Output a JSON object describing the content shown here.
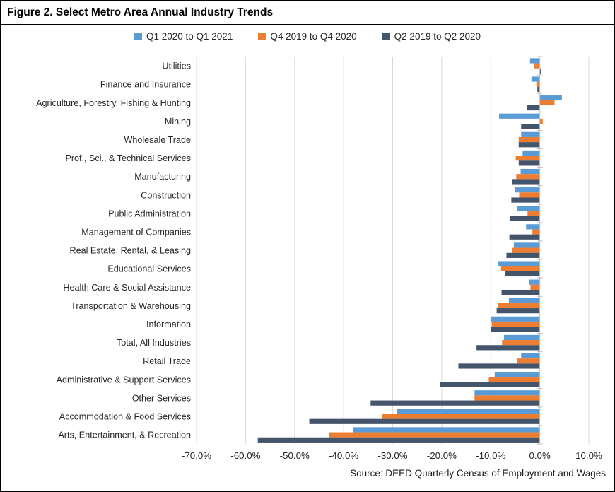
{
  "figure": {
    "source": "Source: DEED Quarterly Census of Employment and Wages"
  },
  "colors": {
    "blue": "#5B9BD5",
    "orange": "#ED7D31",
    "dark_slate": "#44546A",
    "gridline": "#D9D9D9",
    "axis_line": "#BFBFBF",
    "text": "#262626"
  },
  "chart_data": {
    "type": "bar",
    "orientation": "horizontal",
    "title": "Figure 2. Select Metro Area Annual Industry Trends",
    "xlabel": "",
    "ylabel": "",
    "grid": true,
    "legend_position": "top",
    "x_axis": {
      "min": -70,
      "max": 10,
      "tick_step": 10,
      "tick_labels": [
        "-70.0%",
        "-60.0%",
        "-50.0%",
        "-40.0%",
        "-30.0%",
        "-20.0%",
        "-10.0%",
        "0.0%",
        "10.0%"
      ]
    },
    "categories": [
      "Utilities",
      "Finance and Insurance",
      "Agriculture, Forestry, Fishing & Hunting",
      "Mining",
      "Wholesale Trade",
      "Prof., Sci., & Technical Services",
      "Manufacturing",
      "Construction",
      "Public Administration",
      "Management of Companies",
      "Real Estate, Rental, & Leasing",
      "Educational Services",
      "Health Care & Social Assistance",
      "Transportation & Warehousing",
      "Information",
      "Total, All Industries",
      "Retail Trade",
      "Administrative & Support Services",
      "Other Services",
      "Accommodation & Food Services",
      "Arts, Entertainment, & Recreation"
    ],
    "series": [
      {
        "name": "Q1 2020 to Q1 2021",
        "color": "#5B9BD5",
        "values": [
          -2.0,
          -1.7,
          4.5,
          -8.3,
          -3.8,
          -3.5,
          -3.9,
          -5.0,
          -4.7,
          -2.8,
          -5.3,
          -8.5,
          -2.2,
          -6.3,
          -9.9,
          -7.3,
          -3.8,
          -9.2,
          -13.3,
          -29.2,
          -38.0
        ]
      },
      {
        "name": "Q4 2019 to Q4 2020",
        "color": "#ED7D31",
        "values": [
          -1.2,
          -0.7,
          3.0,
          0.6,
          -4.3,
          -4.9,
          -4.8,
          -4.2,
          -2.5,
          -1.5,
          -5.6,
          -7.9,
          -1.9,
          -8.5,
          -9.8,
          -7.7,
          -4.7,
          -10.4,
          -13.3,
          -32.2,
          -43.0
        ]
      },
      {
        "name": "Q2 2019 to Q2 2020",
        "color": "#44546A",
        "values": [
          0.2,
          -0.5,
          -2.6,
          -3.8,
          -4.3,
          -4.3,
          -5.6,
          -5.8,
          -6.0,
          -6.2,
          -6.8,
          -7.1,
          -7.8,
          -8.8,
          -10.0,
          -12.9,
          -16.6,
          -20.4,
          -34.5,
          -47.0,
          -57.5
        ]
      }
    ]
  }
}
